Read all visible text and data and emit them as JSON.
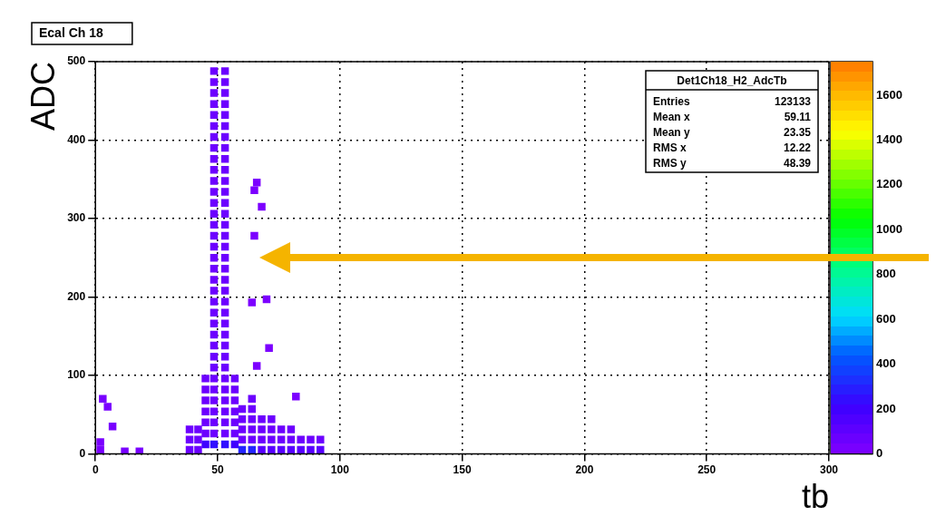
{
  "chart_data": {
    "type": "scatter",
    "title": "Ecal Ch 18",
    "xlabel": "tb",
    "ylabel": "ADC",
    "annotations": [
      "Det1Ch18_H2_AdcTb",
      "Entries 123133",
      "Mean x 59.11",
      "Mean y 23.35",
      "RMS x 12.22",
      "RMS y 48.39"
    ],
    "x": [
      48.5,
      48.5,
      48.5,
      48.5,
      48.5,
      48.5,
      48.5,
      48.5,
      48.5,
      48.5,
      48.5,
      48.5,
      48.5,
      48.5,
      48.5,
      48.5,
      48.5,
      48.5,
      48.5,
      48.5,
      48.5,
      48.5,
      48.5,
      48.5,
      48.5,
      48.5,
      48.5,
      48.5,
      48.5,
      48.5,
      48.5,
      48.5,
      48.5,
      48.5,
      48.5,
      53,
      53,
      53,
      53,
      53,
      53,
      53,
      53,
      53,
      53,
      53,
      53,
      53,
      53,
      53,
      53,
      53,
      53,
      53,
      53,
      53,
      53,
      53,
      53,
      53,
      53,
      53,
      53,
      53,
      53,
      53,
      53,
      53,
      53,
      53,
      45,
      45,
      45,
      45,
      45,
      45,
      45,
      57,
      57,
      57,
      57,
      57,
      57,
      57,
      38.5,
      38.5,
      38.5,
      42,
      42,
      42,
      60,
      60,
      60,
      60,
      60,
      64,
      64,
      64,
      64,
      64,
      64,
      68,
      68,
      68,
      68,
      72,
      72,
      72,
      72,
      76,
      76,
      76,
      80,
      80,
      80,
      84,
      84,
      88,
      88,
      92,
      92,
      2,
      2,
      3,
      5,
      7,
      12,
      18,
      66,
      65,
      68,
      65,
      64,
      70,
      71,
      66,
      82
    ],
    "values": [
      12,
      26,
      40,
      54,
      68,
      82,
      96,
      110,
      124,
      138,
      152,
      166,
      180,
      194,
      208,
      222,
      236,
      250,
      264,
      278,
      292,
      306,
      320,
      334,
      348,
      362,
      376,
      390,
      404,
      418,
      432,
      446,
      460,
      474,
      488,
      12,
      26,
      40,
      54,
      68,
      82,
      96,
      110,
      124,
      138,
      152,
      166,
      180,
      194,
      208,
      222,
      236,
      250,
      264,
      278,
      292,
      306,
      320,
      334,
      348,
      362,
      376,
      390,
      404,
      418,
      432,
      446,
      460,
      474,
      488,
      12,
      26,
      40,
      54,
      68,
      82,
      96,
      12,
      26,
      40,
      54,
      68,
      82,
      96,
      5,
      18,
      31,
      5,
      18,
      31,
      5,
      18,
      31,
      44,
      57,
      5,
      18,
      31,
      44,
      57,
      70,
      5,
      18,
      31,
      44,
      5,
      18,
      31,
      44,
      5,
      18,
      31,
      5,
      18,
      31,
      5,
      18,
      5,
      18,
      5,
      18,
      5,
      15,
      70,
      60,
      35,
      3,
      3,
      346,
      336,
      315,
      278,
      193,
      197,
      135,
      112,
      73
    ],
    "cvalues": [
      250,
      60,
      60,
      60,
      60,
      60,
      60,
      60,
      60,
      60,
      60,
      60,
      60,
      60,
      60,
      60,
      60,
      60,
      60,
      60,
      60,
      60,
      60,
      60,
      60,
      60,
      60,
      60,
      60,
      60,
      60,
      60,
      60,
      60,
      60,
      250,
      60,
      60,
      60,
      60,
      60,
      60,
      60,
      60,
      60,
      60,
      60,
      60,
      60,
      60,
      60,
      60,
      60,
      60,
      60,
      60,
      60,
      60,
      60,
      60,
      60,
      60,
      60,
      60,
      60,
      60,
      60,
      60,
      60,
      60,
      200,
      60,
      60,
      60,
      60,
      60,
      60,
      200,
      60,
      60,
      60,
      60,
      60,
      60,
      60,
      60,
      60,
      60,
      60,
      60,
      300,
      60,
      60,
      60,
      60,
      300,
      60,
      60,
      60,
      60,
      60,
      120,
      60,
      60,
      60,
      120,
      60,
      60,
      60,
      120,
      60,
      60,
      120,
      60,
      60,
      120,
      60,
      120,
      60,
      120,
      60,
      20,
      20,
      20,
      20,
      20,
      20,
      20,
      10,
      10,
      10,
      10,
      10,
      10,
      10,
      10,
      10
    ],
    "marker": "square",
    "grid": true,
    "legend": false,
    "xlim": [
      0,
      300
    ],
    "xticks": [
      0,
      50,
      100,
      150,
      200,
      250,
      300
    ],
    "ylim": [
      0,
      500
    ],
    "yticks": [
      0,
      100,
      200,
      300,
      400,
      500
    ],
    "clim": [
      0,
      1750
    ],
    "cticks": [
      0,
      200,
      400,
      600,
      800,
      1000,
      1200,
      1400,
      1600
    ]
  }
}
